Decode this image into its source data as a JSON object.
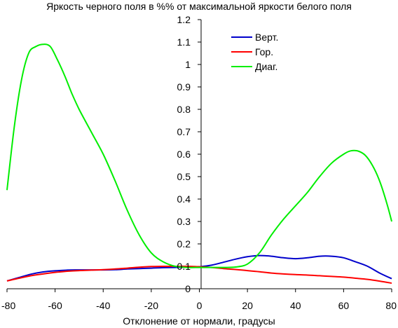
{
  "chart_data": {
    "type": "line",
    "title": "Яркость черного поля в %% от максимальной яркости белого поля",
    "xlabel": "Отклонение от нормали, градусы",
    "ylabel": "",
    "xlim": [
      -80,
      80
    ],
    "ylim": [
      0,
      1.2
    ],
    "x_ticks": [
      "-80",
      "-60",
      "-40",
      "-20",
      "0",
      "20",
      "40",
      "60",
      "80"
    ],
    "y_ticks": [
      "0",
      "0.1",
      "0.2",
      "0.3",
      "0.4",
      "0.5",
      "0.6",
      "0.7",
      "0.8",
      "0.9",
      "1",
      "1.1",
      "1.2"
    ],
    "grid": false,
    "legend_position": "top-right",
    "series": [
      {
        "name": "Верт.",
        "color": "#0000cc",
        "x": [
          -80,
          -75,
          -70,
          -65,
          -60,
          -55,
          -50,
          -45,
          -40,
          -35,
          -30,
          -25,
          -20,
          -15,
          -10,
          -5,
          0,
          5,
          10,
          15,
          20,
          25,
          30,
          35,
          40,
          45,
          50,
          55,
          60,
          65,
          70,
          75,
          80
        ],
        "y": [
          0.035,
          0.05,
          0.065,
          0.075,
          0.08,
          0.083,
          0.084,
          0.084,
          0.084,
          0.085,
          0.088,
          0.09,
          0.092,
          0.094,
          0.095,
          0.096,
          0.098,
          0.105,
          0.118,
          0.132,
          0.143,
          0.148,
          0.145,
          0.138,
          0.134,
          0.138,
          0.145,
          0.145,
          0.138,
          0.12,
          0.1,
          0.07,
          0.045
        ]
      },
      {
        "name": "Гор.",
        "color": "#ff0000",
        "x": [
          -80,
          -75,
          -70,
          -65,
          -60,
          -55,
          -50,
          -45,
          -40,
          -35,
          -30,
          -25,
          -20,
          -15,
          -10,
          -5,
          0,
          5,
          10,
          15,
          20,
          25,
          30,
          35,
          40,
          45,
          50,
          55,
          60,
          65,
          70,
          75,
          80
        ],
        "y": [
          0.035,
          0.047,
          0.058,
          0.066,
          0.073,
          0.078,
          0.081,
          0.083,
          0.085,
          0.088,
          0.092,
          0.096,
          0.099,
          0.1,
          0.1,
          0.1,
          0.098,
          0.095,
          0.09,
          0.086,
          0.081,
          0.076,
          0.07,
          0.066,
          0.063,
          0.061,
          0.058,
          0.055,
          0.052,
          0.047,
          0.042,
          0.034,
          0.025
        ]
      },
      {
        "name": "Диаг.",
        "color": "#00ee00",
        "x": [
          -80,
          -77,
          -74,
          -71,
          -68,
          -65,
          -62,
          -59,
          -56,
          -53,
          -50,
          -45,
          -40,
          -35,
          -30,
          -25,
          -20,
          -15,
          -10,
          -5,
          0,
          5,
          10,
          15,
          20,
          25,
          30,
          35,
          40,
          45,
          50,
          55,
          60,
          63,
          66,
          69,
          72,
          75,
          78,
          80
        ],
        "y": [
          0.44,
          0.72,
          0.93,
          1.05,
          1.08,
          1.09,
          1.08,
          1.02,
          0.95,
          0.87,
          0.8,
          0.7,
          0.6,
          0.48,
          0.35,
          0.24,
          0.16,
          0.12,
          0.1,
          0.095,
          0.095,
          0.095,
          0.095,
          0.097,
          0.11,
          0.16,
          0.24,
          0.31,
          0.37,
          0.43,
          0.5,
          0.56,
          0.6,
          0.615,
          0.614,
          0.595,
          0.55,
          0.48,
          0.38,
          0.3
        ]
      }
    ]
  }
}
